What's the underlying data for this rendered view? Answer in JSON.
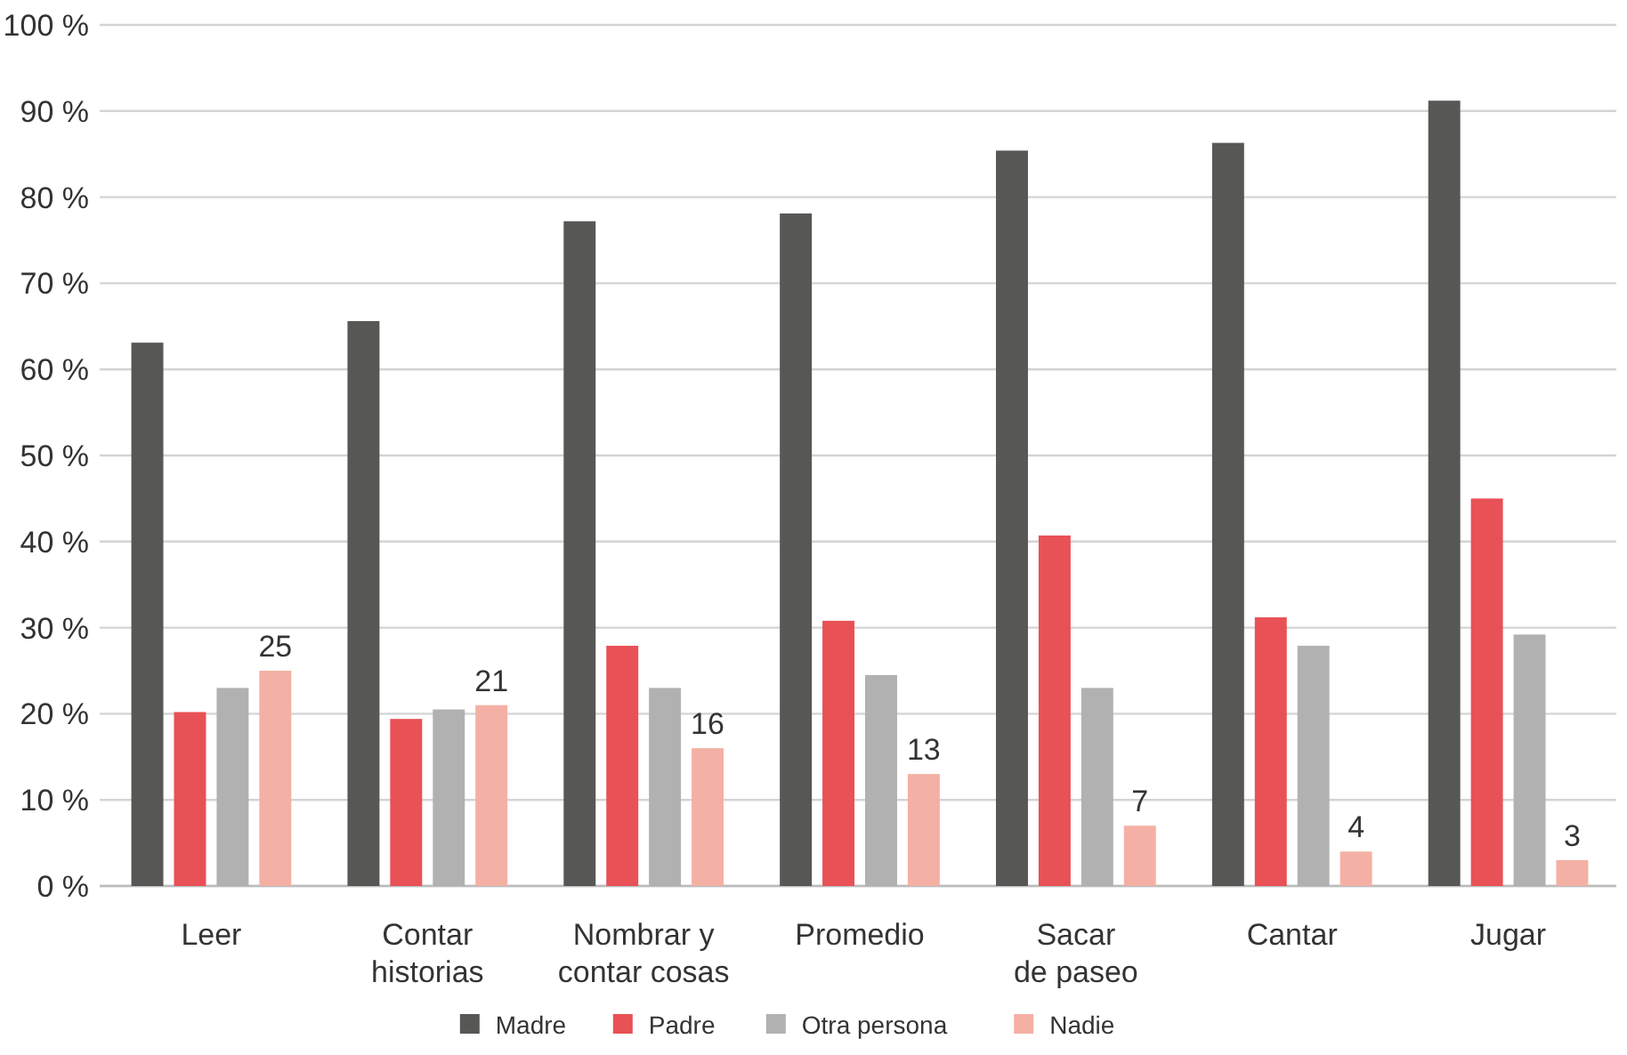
{
  "chart_data": {
    "type": "bar",
    "categories": [
      "Leer",
      "Contar\nhistorias",
      "Nombrar y\ncontar cosas",
      "Promedio",
      "Sacar\nde paseo",
      "Cantar",
      "Jugar"
    ],
    "series": [
      {
        "name": "Madre",
        "color": "#575755",
        "values": [
          63.1,
          65.6,
          77.2,
          78.1,
          85.4,
          86.3,
          91.2
        ]
      },
      {
        "name": "Padre",
        "color": "#e85156",
        "values": [
          20.2,
          19.4,
          27.9,
          30.8,
          40.7,
          31.2,
          45.0
        ]
      },
      {
        "name": "Otra persona",
        "color": "#b1b1b1",
        "values": [
          23.0,
          20.5,
          23.0,
          24.5,
          23.0,
          27.9,
          29.2
        ]
      },
      {
        "name": "Nadie",
        "color": "#f4b0a4",
        "values": [
          25,
          21,
          16,
          13,
          7,
          4,
          3
        ],
        "value_labels": [
          "25",
          "21",
          "16",
          "13",
          "7",
          "4",
          "3"
        ]
      }
    ],
    "ylim": [
      0,
      100
    ],
    "yticks": [
      {
        "value": 0,
        "label": "0 %"
      },
      {
        "value": 10,
        "label": "10 %"
      },
      {
        "value": 20,
        "label": "20 %"
      },
      {
        "value": 30,
        "label": "30 %"
      },
      {
        "value": 40,
        "label": "40 %"
      },
      {
        "value": 50,
        "label": "50 %"
      },
      {
        "value": 60,
        "label": "60 %"
      },
      {
        "value": 70,
        "label": "70 %"
      },
      {
        "value": 80,
        "label": "80 %"
      },
      {
        "value": 90,
        "label": "90 %"
      },
      {
        "value": 100,
        "label": "100 %"
      }
    ],
    "grid": "y",
    "legend": "bottom"
  }
}
